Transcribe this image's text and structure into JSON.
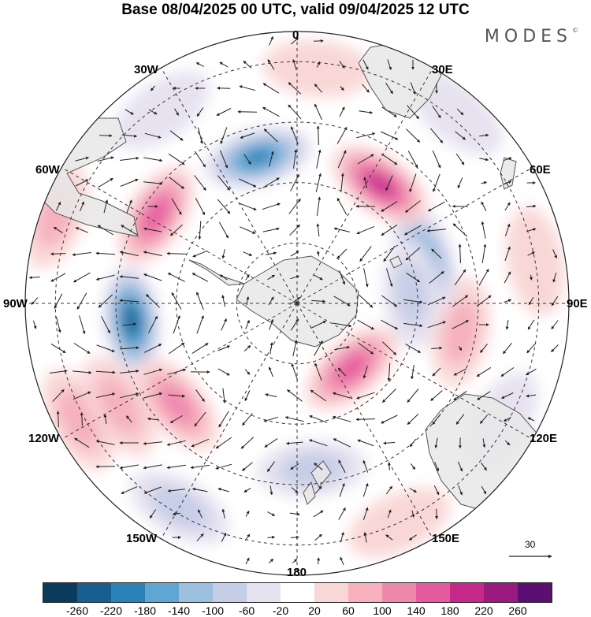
{
  "title": "Base 08/04/2025 00 UTC, valid 09/04/2025 12 UTC",
  "brand": "MODES",
  "brand_mark": "©",
  "longitude_labels": {
    "lon_0": "0",
    "lon_30e": "30E",
    "lon_60e": "60E",
    "lon_90e": "90E",
    "lon_120e": "120E",
    "lon_150e": "150E",
    "lon_180": "180",
    "lon_150w": "150W",
    "lon_120w": "120W",
    "lon_90w": "90W",
    "lon_60w": "60W",
    "lon_30w": "30W"
  },
  "reference_vector": {
    "label": "30"
  },
  "colorbar": {
    "colors": [
      "#0a3b5c",
      "#185f8f",
      "#2a82b9",
      "#5fa7d2",
      "#9dbfe0",
      "#c6cde7",
      "#e6e2f0",
      "#ffffff",
      "#f9d7d7",
      "#f6b1bd",
      "#f088ae",
      "#e45ba0",
      "#c52a8a",
      "#9a1a80",
      "#5c0f72"
    ],
    "ticks": [
      "-260",
      "-220",
      "-180",
      "-140",
      "-100",
      "-60",
      "-20",
      "20",
      "60",
      "100",
      "140",
      "180",
      "220",
      "260"
    ]
  },
  "anomalies": [
    {
      "lon": 5,
      "colat": 55,
      "value": -80
    },
    {
      "lon": 40,
      "colat": 28,
      "value": 160
    },
    {
      "lon": 80,
      "colat": 55,
      "value": 90
    },
    {
      "lon": 110,
      "colat": 45,
      "value": -170
    },
    {
      "lon": 145,
      "colat": 48,
      "value": 180
    },
    {
      "lon": 195,
      "colat": 50,
      "value": -180
    },
    {
      "lon": 238,
      "colat": 55,
      "value": 150
    },
    {
      "lon": 276,
      "colat": 55,
      "value": -240
    },
    {
      "lon": 310,
      "colat": 52,
      "value": 130
    },
    {
      "lon": 330,
      "colat": 78,
      "value": -70
    },
    {
      "lon": 25,
      "colat": 80,
      "value": 50
    },
    {
      "lon": 100,
      "colat": 80,
      "value": 50
    },
    {
      "lon": 140,
      "colat": 82,
      "value": -50
    },
    {
      "lon": 175,
      "colat": 78,
      "value": 50
    },
    {
      "lon": 215,
      "colat": 78,
      "value": -40
    },
    {
      "lon": 250,
      "colat": 85,
      "value": 60
    },
    {
      "lon": 298,
      "colat": 82,
      "value": 70
    },
    {
      "lon": 300,
      "colat": 68,
      "value": 70
    },
    {
      "lon": 60,
      "colat": 78,
      "value": -40
    },
    {
      "lon": 95,
      "colat": 38,
      "value": -60
    }
  ]
}
